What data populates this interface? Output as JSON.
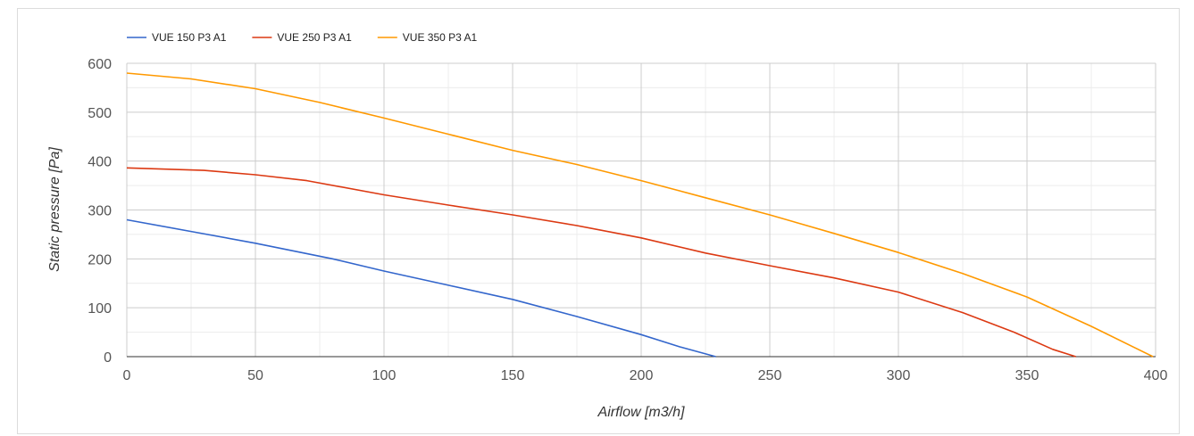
{
  "chart_data": {
    "type": "line",
    "xlabel": "Airflow [m3/h]",
    "ylabel": "Static pressure [Pa]",
    "xlim": [
      0,
      400
    ],
    "ylim": [
      0,
      600
    ],
    "x_ticks": [
      "0",
      "50",
      "100",
      "150",
      "200",
      "250",
      "300",
      "350",
      "400"
    ],
    "y_ticks": [
      "0",
      "100",
      "200",
      "300",
      "400",
      "500",
      "600"
    ],
    "grid": true,
    "legend_position": "top-left",
    "series": [
      {
        "name": "VUE 150 P3 A1",
        "color": "#3366cc",
        "points": [
          [
            0,
            280
          ],
          [
            25,
            256
          ],
          [
            50,
            232
          ],
          [
            80,
            200
          ],
          [
            100,
            175
          ],
          [
            125,
            146
          ],
          [
            150,
            117
          ],
          [
            175,
            82
          ],
          [
            200,
            45
          ],
          [
            215,
            20
          ],
          [
            229,
            0
          ]
        ]
      },
      {
        "name": "VUE 250 P3 A1",
        "color": "#dc3912",
        "points": [
          [
            0,
            386
          ],
          [
            30,
            381
          ],
          [
            50,
            372
          ],
          [
            70,
            360
          ],
          [
            100,
            331
          ],
          [
            125,
            310
          ],
          [
            150,
            290
          ],
          [
            175,
            268
          ],
          [
            200,
            243
          ],
          [
            225,
            212
          ],
          [
            250,
            186
          ],
          [
            275,
            161
          ],
          [
            300,
            132
          ],
          [
            325,
            90
          ],
          [
            345,
            50
          ],
          [
            360,
            15
          ],
          [
            369,
            0
          ]
        ]
      },
      {
        "name": "VUE 350 P3 A1",
        "color": "#ff9900",
        "points": [
          [
            0,
            580
          ],
          [
            25,
            568
          ],
          [
            50,
            548
          ],
          [
            75,
            520
          ],
          [
            100,
            488
          ],
          [
            125,
            455
          ],
          [
            150,
            422
          ],
          [
            175,
            393
          ],
          [
            200,
            360
          ],
          [
            225,
            325
          ],
          [
            250,
            290
          ],
          [
            275,
            252
          ],
          [
            300,
            213
          ],
          [
            325,
            170
          ],
          [
            350,
            122
          ],
          [
            375,
            62
          ],
          [
            399,
            0
          ]
        ]
      }
    ]
  }
}
